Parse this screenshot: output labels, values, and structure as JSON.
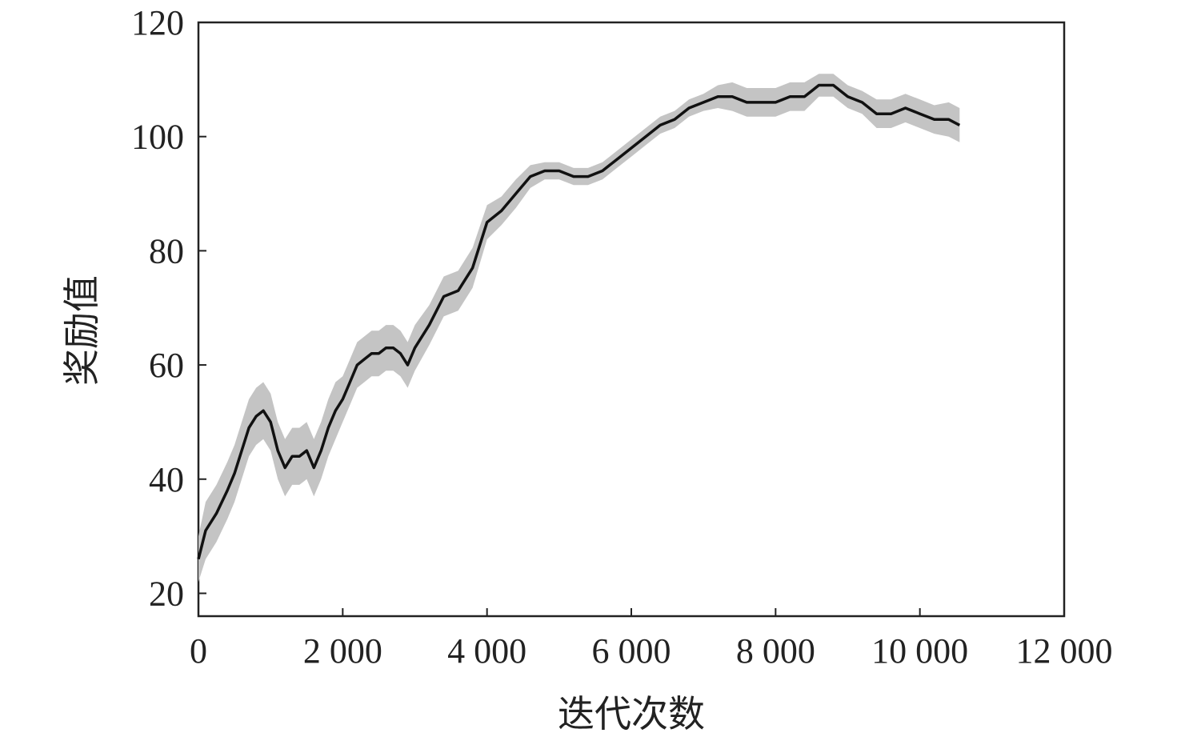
{
  "chart_data": {
    "type": "line",
    "title": "",
    "xlabel": "迭代次数",
    "ylabel": "奖励值",
    "xlim": [
      0,
      12000
    ],
    "ylim": [
      16,
      120
    ],
    "xticks": [
      0,
      2000,
      4000,
      6000,
      8000,
      10000,
      12000
    ],
    "xtick_labels": [
      "0",
      "2 000",
      "4 000",
      "6 000",
      "8 000",
      "10 000",
      "12 000"
    ],
    "yticks": [
      20,
      40,
      60,
      80,
      100,
      120
    ],
    "ytick_labels": [
      "20",
      "40",
      "60",
      "80",
      "100",
      "120"
    ],
    "grid": false,
    "legend": "none",
    "colors": {
      "line": "#111111",
      "band": "#c4c4c4",
      "axis": "#222222"
    },
    "series": [
      {
        "x": [
          0,
          100,
          250,
          400,
          500,
          600,
          700,
          800,
          900,
          1000,
          1100,
          1200,
          1300,
          1400,
          1500,
          1600,
          1700,
          1800,
          1900,
          2000,
          2100,
          2200,
          2300,
          2400,
          2500,
          2600,
          2700,
          2800,
          2900,
          3000,
          3200,
          3400,
          3600,
          3800,
          4000,
          4200,
          4400,
          4600,
          4800,
          5000,
          5200,
          5400,
          5600,
          5800,
          6000,
          6200,
          6400,
          6600,
          6800,
          7000,
          7200,
          7400,
          7600,
          7800,
          8000,
          8200,
          8400,
          8600,
          8800,
          9000,
          9200,
          9400,
          9600,
          9800,
          10000,
          10200,
          10400,
          10550
        ],
        "values": [
          26,
          31,
          34,
          38,
          41,
          45,
          49,
          51,
          52,
          50,
          45,
          42,
          44,
          44,
          45,
          42,
          45,
          49,
          52,
          54,
          57,
          60,
          61,
          62,
          62,
          63,
          63,
          62,
          60,
          63,
          67,
          72,
          73,
          77,
          85,
          87,
          90,
          93,
          94,
          94,
          93,
          93,
          94,
          96,
          98,
          100,
          102,
          103,
          105,
          106,
          107,
          107,
          106,
          106,
          106,
          107,
          107,
          109,
          109,
          107,
          106,
          104,
          104,
          105,
          104,
          103,
          103,
          102
        ],
        "band": [
          4,
          5,
          5,
          5,
          5,
          5,
          5,
          5,
          5,
          5,
          5,
          5,
          5,
          5,
          5,
          5,
          5,
          5,
          5,
          4,
          4,
          4,
          4,
          4,
          4,
          4,
          4,
          4,
          4,
          4,
          3.5,
          3.5,
          3.5,
          3.5,
          3,
          2.5,
          2.5,
          2,
          1.5,
          1.5,
          1.5,
          1.5,
          1.5,
          1.5,
          1.5,
          1.5,
          1.5,
          1.5,
          1.5,
          1.5,
          2,
          2.5,
          2.5,
          2.5,
          2.5,
          2.5,
          2.5,
          2,
          2,
          2,
          2,
          2.5,
          2.5,
          2.5,
          2.5,
          2.5,
          3,
          3
        ]
      }
    ]
  }
}
